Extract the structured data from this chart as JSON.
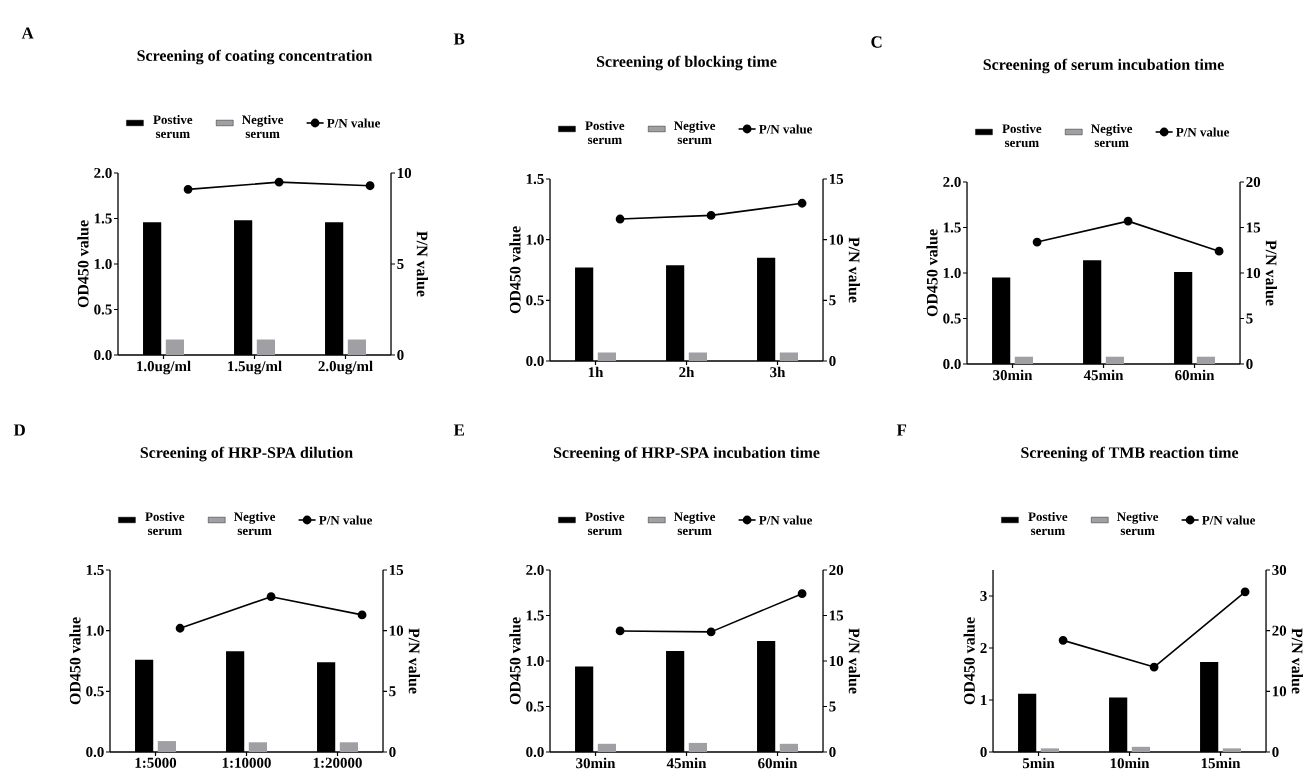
{
  "chart_data": [
    {
      "type": "bar",
      "title": "Screening of coating concentration",
      "annotations": [
        "A"
      ],
      "categories": [
        "1.0ug/ml",
        "1.5ug/ml",
        "2.0ug/ml"
      ],
      "ylabel": "OD450 value",
      "y2label": "P/N value",
      "ylim": [
        0,
        2
      ],
      "yticks": [
        {
          "value": 0,
          "label": "0.0"
        },
        {
          "value": 0.5,
          "label": "0.5"
        },
        {
          "value": 1,
          "label": "1.0"
        },
        {
          "value": 1.5,
          "label": "1.5"
        },
        {
          "value": 2,
          "label": "2.0"
        }
      ],
      "y2lim": [
        0,
        10
      ],
      "y2ticks": [
        0,
        5,
        10
      ],
      "legend": "top",
      "series": [
        {
          "name": "Postive serum",
          "color": "#000000",
          "values": [
            1.46,
            1.48,
            1.46
          ]
        },
        {
          "name": "Negtive serum",
          "color": "#a0a0a4",
          "values": [
            0.17,
            0.17,
            0.17
          ]
        },
        {
          "name": "P/N value",
          "type": "line",
          "axis": "y2",
          "marker": "circle",
          "color": "#000000",
          "values": [
            9.1,
            9.5,
            9.3
          ]
        }
      ]
    },
    {
      "type": "bar",
      "title": "Screening of blocking time",
      "annotations": [
        "B"
      ],
      "categories": [
        "1h",
        "2h",
        "3h"
      ],
      "ylabel": "OD450 value",
      "y2label": "P/N value",
      "ylim": [
        0,
        1.5
      ],
      "yticks": [
        {
          "value": 0,
          "label": "0.0"
        },
        {
          "value": 0.5,
          "label": "0.5"
        },
        {
          "value": 1,
          "label": "1.0"
        },
        {
          "value": 1.5,
          "label": "1.5"
        }
      ],
      "y2lim": [
        0,
        15
      ],
      "y2ticks": [
        0,
        5,
        10,
        15
      ],
      "legend": "top",
      "series": [
        {
          "name": "Postive serum",
          "color": "#000000",
          "values": [
            0.77,
            0.79,
            0.85
          ]
        },
        {
          "name": "Negtive serum",
          "color": "#a0a0a4",
          "values": [
            0.07,
            0.07,
            0.07
          ]
        },
        {
          "name": "P/N value",
          "type": "line",
          "axis": "y2",
          "marker": "circle",
          "color": "#000000",
          "values": [
            11.7,
            12.0,
            13.0
          ]
        }
      ]
    },
    {
      "type": "bar",
      "title": "Screening of serum incubation time",
      "annotations": [
        "C"
      ],
      "categories": [
        "30min",
        "45min",
        "60min"
      ],
      "ylabel": "OD450 value",
      "y2label": "P/N value",
      "ylim": [
        0,
        2
      ],
      "yticks": [
        {
          "value": 0,
          "label": "0.0"
        },
        {
          "value": 0.5,
          "label": "0.5"
        },
        {
          "value": 1,
          "label": "1.0"
        },
        {
          "value": 1.5,
          "label": "1.5"
        },
        {
          "value": 2,
          "label": "2.0"
        }
      ],
      "y2lim": [
        0,
        20
      ],
      "y2ticks": [
        0,
        5,
        10,
        15,
        20
      ],
      "legend": "top",
      "series": [
        {
          "name": "Postive serum",
          "color": "#000000",
          "values": [
            0.95,
            1.14,
            1.01
          ]
        },
        {
          "name": "Negtive serum",
          "color": "#a0a0a4",
          "values": [
            0.08,
            0.08,
            0.08
          ]
        },
        {
          "name": "P/N value",
          "type": "line",
          "axis": "y2",
          "marker": "circle",
          "color": "#000000",
          "values": [
            13.4,
            15.7,
            12.4
          ]
        }
      ]
    },
    {
      "type": "bar",
      "title": "Screening of HRP-SPA dilution",
      "annotations": [
        "D"
      ],
      "categories": [
        "1:5000",
        "1:10000",
        "1:20000"
      ],
      "ylabel": "OD450 value",
      "y2label": "P/N value",
      "ylim": [
        0,
        1.5
      ],
      "yticks": [
        {
          "value": 0,
          "label": "0.0"
        },
        {
          "value": 0.5,
          "label": "0.5"
        },
        {
          "value": 1,
          "label": "1.0"
        },
        {
          "value": 1.5,
          "label": "1.5"
        }
      ],
      "y2lim": [
        0,
        15
      ],
      "y2ticks": [
        0,
        5,
        10,
        15
      ],
      "legend": "top",
      "series": [
        {
          "name": "Postive serum",
          "color": "#000000",
          "values": [
            0.76,
            0.83,
            0.74
          ]
        },
        {
          "name": "Negtive serum",
          "color": "#a0a0a4",
          "values": [
            0.09,
            0.08,
            0.08
          ]
        },
        {
          "name": "P/N value",
          "type": "line",
          "axis": "y2",
          "marker": "circle",
          "color": "#000000",
          "values": [
            10.2,
            12.8,
            11.3
          ]
        }
      ]
    },
    {
      "type": "bar",
      "title": "Screening of HRP-SPA incubation time",
      "annotations": [
        "E"
      ],
      "categories": [
        "30min",
        "45min",
        "60min"
      ],
      "ylabel": "OD450 value",
      "y2label": "P/N value",
      "ylim": [
        0,
        2
      ],
      "yticks": [
        {
          "value": 0,
          "label": "0.0"
        },
        {
          "value": 0.5,
          "label": "0.5"
        },
        {
          "value": 1,
          "label": "1.0"
        },
        {
          "value": 1.5,
          "label": "1.5"
        },
        {
          "value": 2,
          "label": "2.0"
        }
      ],
      "y2lim": [
        0,
        20
      ],
      "y2ticks": [
        0,
        5,
        10,
        15,
        20
      ],
      "legend": "top",
      "series": [
        {
          "name": "Postive serum",
          "color": "#000000",
          "values": [
            0.94,
            1.11,
            1.22
          ]
        },
        {
          "name": "Negtive serum",
          "color": "#a0a0a4",
          "values": [
            0.09,
            0.1,
            0.09
          ]
        },
        {
          "name": "P/N value",
          "type": "line",
          "axis": "y2",
          "marker": "circle",
          "color": "#000000",
          "values": [
            13.3,
            13.2,
            17.4
          ]
        }
      ]
    },
    {
      "type": "bar",
      "title": "Screening of TMB reaction time",
      "annotations": [
        "F"
      ],
      "categories": [
        "5min",
        "10min",
        "15min"
      ],
      "ylabel": "OD450 value",
      "y2label": "P/N value",
      "ylim": [
        0,
        3.5
      ],
      "yticks": [
        0,
        1,
        2,
        3
      ],
      "y2lim": [
        0,
        30
      ],
      "y2ticks": [
        0,
        10,
        20,
        30
      ],
      "legend": "top",
      "series": [
        {
          "name": "Postive serum",
          "color": "#000000",
          "values": [
            1.12,
            1.05,
            1.73
          ]
        },
        {
          "name": "Negtive serum",
          "color": "#a0a0a4",
          "values": [
            0.07,
            0.1,
            0.07
          ]
        },
        {
          "name": "P/N value",
          "type": "line",
          "axis": "y2",
          "marker": "circle",
          "color": "#000000",
          "values": [
            18.4,
            14.0,
            26.4
          ]
        }
      ]
    }
  ]
}
